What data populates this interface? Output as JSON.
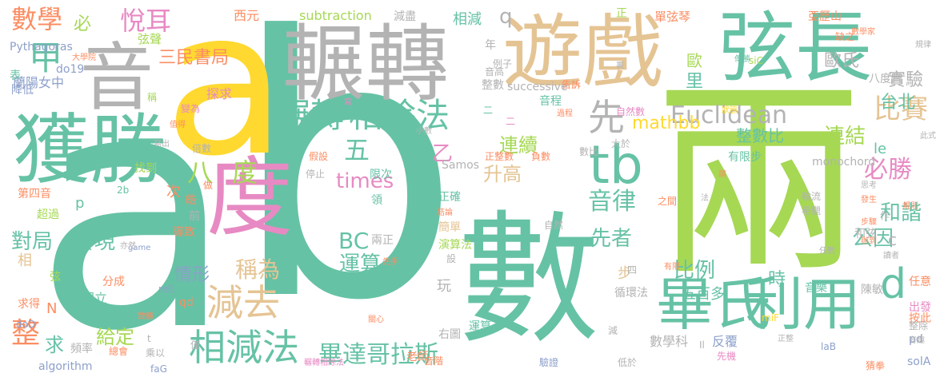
{
  "words": [
    {
      "text": "a",
      "color": "#66c2a5"
    },
    {
      "text": "b",
      "color": "#66c2a5"
    },
    {
      "text": "a",
      "color": "#ffd92f"
    },
    {
      "text": "兩",
      "color": "#a6d854"
    },
    {
      "text": "數",
      "color": "#66c2a5"
    },
    {
      "text": "輾轉",
      "color": "#b3b3b3"
    },
    {
      "text": "音",
      "color": "#b3b3b3"
    },
    {
      "text": "遊戲",
      "color": "#e5c494"
    },
    {
      "text": "弦長",
      "color": "#66c2a5"
    },
    {
      "text": "獲勝",
      "color": "#66c2a5"
    },
    {
      "text": "度",
      "color": "#e78ac3"
    },
    {
      "text": "畢氏",
      "color": "#66c2a5"
    },
    {
      "text": "利用",
      "color": "#66c2a5"
    },
    {
      "text": "tb",
      "color": "#66c2a5"
    },
    {
      "text": "相除法",
      "color": "#66c2a5"
    },
    {
      "text": "輾轉",
      "color": "#66c2a5"
    },
    {
      "text": "相減法",
      "color": "#66c2a5"
    },
    {
      "text": "減去",
      "color": "#e5c494"
    },
    {
      "text": "數學",
      "color": "#fc8d62"
    },
    {
      "text": "悅耳",
      "color": "#e78ac3"
    },
    {
      "text": "甲",
      "color": "#66c2a5"
    },
    {
      "text": "比賽",
      "color": "#e5c494"
    },
    {
      "text": "先",
      "color": "#b3b3b3"
    },
    {
      "text": "畢達哥拉斯",
      "color": "#66c2a5"
    },
    {
      "text": "Euclidean",
      "color": "#b3b3b3"
    },
    {
      "text": "mathbb",
      "color": "#ffd92f"
    },
    {
      "text": "必勝",
      "color": "#e78ac3"
    },
    {
      "text": "音律",
      "color": "#66c2a5"
    },
    {
      "text": "d",
      "color": "#66c2a5"
    },
    {
      "text": "整",
      "color": "#fc8d62"
    },
    {
      "text": "times",
      "color": "#e78ac3"
    },
    {
      "text": "連續",
      "color": "#a6d854"
    },
    {
      "text": "連結",
      "color": "#a6d854"
    },
    {
      "text": "和諧",
      "color": "#66c2a5"
    },
    {
      "text": "三民書局",
      "color": "#fc8d62"
    },
    {
      "text": "升高",
      "color": "#e5c494"
    },
    {
      "text": "比例",
      "color": "#66c2a5"
    },
    {
      "text": "對局",
      "color": "#66c2a5"
    },
    {
      "text": "發現",
      "color": "#66c2a5"
    },
    {
      "text": "運算",
      "color": "#66c2a5"
    },
    {
      "text": "絕招",
      "color": "#66c2a5"
    },
    {
      "text": "稱為",
      "color": "#e5c494"
    },
    {
      "text": "情形",
      "color": "#8da0cb"
    },
    {
      "text": "先者",
      "color": "#66c2a5"
    },
    {
      "text": "公因",
      "color": "#66c2a5"
    },
    {
      "text": "實驗",
      "color": "#b3b3b3"
    },
    {
      "text": "歐氏",
      "color": "#b3b3b3"
    },
    {
      "text": "台北",
      "color": "#66c2a5"
    },
    {
      "text": "BC",
      "color": "#66c2a5"
    },
    {
      "text": "給定",
      "color": "#a6d854"
    },
    {
      "text": "求",
      "color": "#66c2a5"
    },
    {
      "text": "八",
      "color": "#a6d854"
    },
    {
      "text": "度",
      "color": "#a6d854"
    },
    {
      "text": "五",
      "color": "#66c2a5"
    },
    {
      "text": "乙",
      "color": "#e78ac3"
    },
    {
      "text": "必",
      "color": "#a6d854"
    },
    {
      "text": "q",
      "color": "#b3b3b3"
    },
    {
      "text": "里",
      "color": "#66c2a5"
    },
    {
      "text": "歐",
      "color": "#a6d854"
    },
    {
      "text": "西元",
      "color": "#fc8d62"
    },
    {
      "text": "subtraction",
      "color": "#a6d854"
    },
    {
      "text": "減盡",
      "color": "#b3b3b3"
    },
    {
      "text": "相減",
      "color": "#66c2a5"
    },
    {
      "text": "亞歷山",
      "color": "#fc8d62"
    },
    {
      "text": "單弦琴",
      "color": "#fc8d62"
    },
    {
      "text": "正",
      "color": "#a6d854"
    },
    {
      "text": "弦聲",
      "color": "#a6d854"
    },
    {
      "text": "大學院",
      "color": "#fc8d62"
    },
    {
      "text": "Pythagoras",
      "color": "#8da0cb"
    },
    {
      "text": "蘭陽女中",
      "color": "#8da0cb"
    },
    {
      "text": "降低",
      "color": "#8da0cb"
    },
    {
      "text": "表",
      "color": "#66c2a5"
    },
    {
      "text": "do19",
      "color": "#8da0cb"
    },
    {
      "text": "探求",
      "color": "#e78ac3"
    },
    {
      "text": "整數比",
      "color": "#66c2a5"
    },
    {
      "text": "successive",
      "color": "#b3b3b3"
    },
    {
      "text": "音程",
      "color": "#66c2a5"
    },
    {
      "text": "整數",
      "color": "#b3b3b3"
    },
    {
      "text": "音高",
      "color": "#b3b3b3"
    },
    {
      "text": "有限步",
      "color": "#66c2a5"
    },
    {
      "text": "Samos",
      "color": "#b3b3b3"
    },
    {
      "text": "monochord",
      "color": "#b3b3b3"
    },
    {
      "text": "le",
      "color": "#66c2a5"
    },
    {
      "text": "c",
      "color": "#b3b3b3"
    },
    {
      "text": "時",
      "color": "#66c2a5"
    },
    {
      "text": "五百多",
      "color": "#66c2a5"
    },
    {
      "text": "步",
      "color": "#e5c494"
    },
    {
      "text": "數學科",
      "color": "#b3b3b3"
    },
    {
      "text": "反覆",
      "color": "#8da0cb"
    },
    {
      "text": "老師",
      "color": "#fc8d62"
    },
    {
      "text": "algorithm",
      "color": "#8da0cb"
    },
    {
      "text": "國立",
      "color": "#66c2a5"
    },
    {
      "text": "分成",
      "color": "#fc8d62"
    },
    {
      "text": "N",
      "color": "#fc8d62"
    },
    {
      "text": "p",
      "color": "#66c2a5"
    },
    {
      "text": "相",
      "color": "#e5c494"
    },
    {
      "text": "玩",
      "color": "#b3b3b3"
    },
    {
      "text": "兩正",
      "color": "#b3b3b3"
    },
    {
      "text": "簡單",
      "color": "#e5c494"
    },
    {
      "text": "正確",
      "color": "#66c2a5"
    },
    {
      "text": "限次",
      "color": "#66c2a5"
    },
    {
      "text": "導致",
      "color": "#fc8d62"
    },
    {
      "text": "皓",
      "color": "#fc8d62"
    },
    {
      "text": "次",
      "color": "#fc8d62"
    },
    {
      "text": "前",
      "color": "#b3b3b3"
    },
    {
      "text": "找到",
      "color": "#a6d854"
    },
    {
      "text": "驗證",
      "color": "#8da0cb"
    },
    {
      "text": "陳敏",
      "color": "#b3b3b3"
    },
    {
      "text": "按此",
      "color": "#fc8d62"
    },
    {
      "text": "任意",
      "color": "#fc8d62"
    },
    {
      "text": "音樂",
      "color": "#66c2a5"
    },
    {
      "text": "演算法",
      "color": "#a6d854"
    },
    {
      "text": "運算",
      "color": "#66c2a5"
    },
    {
      "text": "和弦",
      "color": "#b3b3b3"
    },
    {
      "text": "solA",
      "color": "#8da0cb"
    },
    {
      "text": "pd",
      "color": "#8da0cb"
    },
    {
      "text": "低於",
      "color": "#b3b3b3"
    },
    {
      "text": "頻率",
      "color": "#b3b3b3"
    },
    {
      "text": "game",
      "color": "#8da0cb"
    },
    {
      "text": "reE",
      "color": "#8da0cb"
    },
    {
      "text": "faG",
      "color": "#8da0cb"
    },
    {
      "text": "doD",
      "color": "#8da0cb"
    },
    {
      "text": "miF",
      "color": "#ffd92f"
    },
    {
      "text": "laB",
      "color": "#8da0cb"
    },
    {
      "text": "siC",
      "color": "#a6d854"
    },
    {
      "text": "右圖",
      "color": "#b3b3b3"
    },
    {
      "text": "循環法",
      "color": "#b3b3b3"
    },
    {
      "text": "四",
      "color": "#b3b3b3"
    },
    {
      "text": "qd",
      "color": "#fc8d62"
    },
    {
      "text": "乘以",
      "color": "#b3b3b3"
    },
    {
      "text": "僅",
      "color": "#b3b3b3"
    },
    {
      "text": "音階",
      "color": "#fc8d62"
    },
    {
      "text": "先機",
      "color": "#e78ac3"
    },
    {
      "text": "自然",
      "color": "#b3b3b3"
    },
    {
      "text": "自然數",
      "color": "#e78ac3"
    },
    {
      "text": "之間",
      "color": "#fc8d62"
    },
    {
      "text": "例子",
      "color": "#b3b3b3"
    },
    {
      "text": "告訴",
      "color": "#fc8d62"
    },
    {
      "text": "年",
      "color": "#b3b3b3"
    },
    {
      "text": "二",
      "color": "#e78ac3"
    },
    {
      "text": "數比",
      "color": "#b3b3b3"
    },
    {
      "text": "大於",
      "color": "#b3b3b3"
    },
    {
      "text": "負數",
      "color": "#fc8d62"
    },
    {
      "text": "正整數",
      "color": "#fc8d62"
    },
    {
      "text": "假設",
      "color": "#fc8d62"
    },
    {
      "text": "停止",
      "color": "#b3b3b3"
    },
    {
      "text": "稱",
      "color": "#a6d854"
    },
    {
      "text": "變為",
      "color": "#e78ac3"
    },
    {
      "text": "倍數",
      "color": "#b3b3b3"
    },
    {
      "text": "超過",
      "color": "#a6d854"
    },
    {
      "text": "第四音",
      "color": "#fc8d62"
    },
    {
      "text": "求得",
      "color": "#fc8d62"
    },
    {
      "text": "弦",
      "color": "#a6d854"
    },
    {
      "text": "致勝",
      "color": "#fc8d62"
    },
    {
      "text": "總會",
      "color": "#fc8d62"
    },
    {
      "text": "關心",
      "color": "#fc8d62"
    },
    {
      "text": "猜拳",
      "color": "#fc8d62"
    },
    {
      "text": "整除",
      "color": "#b3b3b3"
    },
    {
      "text": "出發",
      "color": "#e78ac3"
    },
    {
      "text": "讀者",
      "color": "#b3b3b3"
    },
    {
      "text": "規則",
      "color": "#fc8d62"
    },
    {
      "text": "辦到",
      "color": "#fc8d62"
    },
    {
      "text": "步驟",
      "color": "#fc8d62"
    },
    {
      "text": "希臘",
      "color": "#b3b3b3"
    },
    {
      "text": "思考",
      "color": "#b3b3b3"
    },
    {
      "text": "輪流",
      "color": "#b3b3b3"
    },
    {
      "text": "發生",
      "color": "#fc8d62"
    },
    {
      "text": "八度音",
      "color": "#b3b3b3"
    },
    {
      "text": "規律",
      "color": "#b3b3b3"
    },
    {
      "text": "缺之",
      "color": "#fc8d62"
    },
    {
      "text": "狀態",
      "color": "#ffd92f"
    },
    {
      "text": "傳勝",
      "color": "#66c2a5"
    },
    {
      "text": "此式",
      "color": "#b3b3b3"
    },
    {
      "text": "數學家",
      "color": "#fc8d62"
    },
    {
      "text": "2b",
      "color": "#66c2a5"
    },
    {
      "text": "Il",
      "color": "#b3b3b3"
    },
    {
      "text": "t",
      "color": "#b3b3b3"
    },
    {
      "text": "三",
      "color": "#66c2a5"
    },
    {
      "text": "二",
      "color": "#66c2a5"
    },
    {
      "text": "做",
      "color": "#fc8d62"
    },
    {
      "text": "寫出",
      "color": "#b3b3b3"
    },
    {
      "text": "值得",
      "color": "#fc8d62"
    },
    {
      "text": "亦然",
      "color": "#b3b3b3"
    },
    {
      "text": "先手",
      "color": "#fc8d62"
    },
    {
      "text": "結論",
      "color": "#fc8d62"
    },
    {
      "text": "領",
      "color": "#66c2a5"
    },
    {
      "text": "過程",
      "color": "#fc8d62"
    },
    {
      "text": "有趣",
      "color": "#b3b3b3"
    },
    {
      "text": "作",
      "color": "#b3b3b3"
    },
    {
      "text": "法",
      "color": "#b3b3b3"
    },
    {
      "text": "請",
      "color": "#fc8d62"
    },
    {
      "text": "任數",
      "color": "#b3b3b3"
    },
    {
      "text": "有限",
      "color": "#fc8d62"
    },
    {
      "text": "減",
      "color": "#b3b3b3"
    },
    {
      "text": "正整",
      "color": "#b3b3b3"
    },
    {
      "text": "裏",
      "color": "#b3b3b3"
    },
    {
      "text": "寫",
      "color": "#e78ac3"
    },
    {
      "text": "小數",
      "color": "#b3b3b3"
    },
    {
      "text": "設",
      "color": "#b3b3b3"
    },
    {
      "text": "輾轉相除法",
      "color": "#e78ac3"
    }
  ]
}
